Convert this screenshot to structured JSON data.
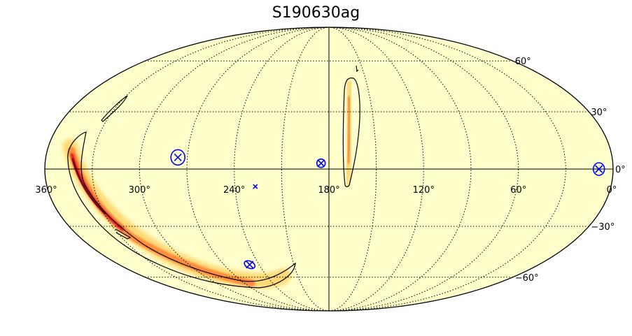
{
  "title": "S190630ag",
  "projection": "mollweide",
  "colormap": "YlOrRd",
  "colors": {
    "background": "#ffffcc",
    "low": "#fed976",
    "mid": "#fd8d3c",
    "high": "#e31a1c",
    "peak": "#800026",
    "marker": "#0000ff",
    "grid": "#000000"
  },
  "ra_ticks": [
    {
      "value": 360,
      "label": "360°"
    },
    {
      "value": 300,
      "label": "300°"
    },
    {
      "value": 240,
      "label": "240°"
    },
    {
      "value": 180,
      "label": "180°"
    },
    {
      "value": 120,
      "label": "120°"
    },
    {
      "value": 60,
      "label": "60°"
    },
    {
      "value": 0,
      "label": "0°"
    }
  ],
  "dec_ticks": [
    {
      "value": 60,
      "label": "60°"
    },
    {
      "value": 30,
      "label": "30°"
    },
    {
      "value": 0,
      "label": "0°"
    },
    {
      "value": -30,
      "label": "−30°"
    },
    {
      "value": -60,
      "label": "−60°"
    }
  ],
  "markers": [
    {
      "icon": "circled-x-marker-icon",
      "ra": 276,
      "dec": 6
    },
    {
      "icon": "circled-x-marker-icon",
      "ra": 185,
      "dec": 3
    },
    {
      "icon": "x-marker-icon",
      "ra": 227,
      "dec": -9
    },
    {
      "icon": "circled-x-marker-icon",
      "ra": 248,
      "dec": -52
    },
    {
      "icon": "circled-x-marker-icon",
      "ra": 9,
      "dec": 0
    }
  ]
}
